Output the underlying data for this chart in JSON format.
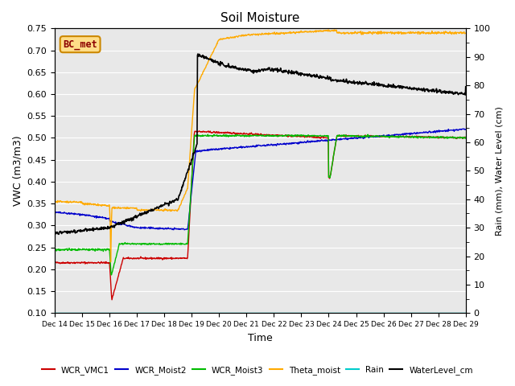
{
  "title": "Soil Moisture",
  "xlabel": "Time",
  "ylabel_left": "VWC (m3/m3)",
  "ylabel_right": "Rain (mm), Water Level (cm)",
  "ylim_left": [
    0.1,
    0.75
  ],
  "ylim_right": [
    0,
    100
  ],
  "yticks_left": [
    0.1,
    0.15,
    0.2,
    0.25,
    0.3,
    0.35,
    0.4,
    0.45,
    0.5,
    0.55,
    0.6,
    0.65,
    0.7,
    0.75
  ],
  "yticks_right": [
    0,
    10,
    20,
    30,
    40,
    50,
    60,
    70,
    80,
    90,
    100
  ],
  "bg_color": "#e8e8e8",
  "legend_labels": [
    "WCR_VMC1",
    "WCR_Moist2",
    "WCR_Moist3",
    "Theta_moist",
    "Rain",
    "WaterLevel_cm"
  ],
  "legend_colors": [
    "#cc0000",
    "#0000cc",
    "#00bb00",
    "#ffaa00",
    "#00cccc",
    "#000000"
  ],
  "annotation_text": "BC_met",
  "annotation_color": "#8b0000",
  "annotation_bg": "#ffdd88",
  "annotation_border": "#cc8800"
}
